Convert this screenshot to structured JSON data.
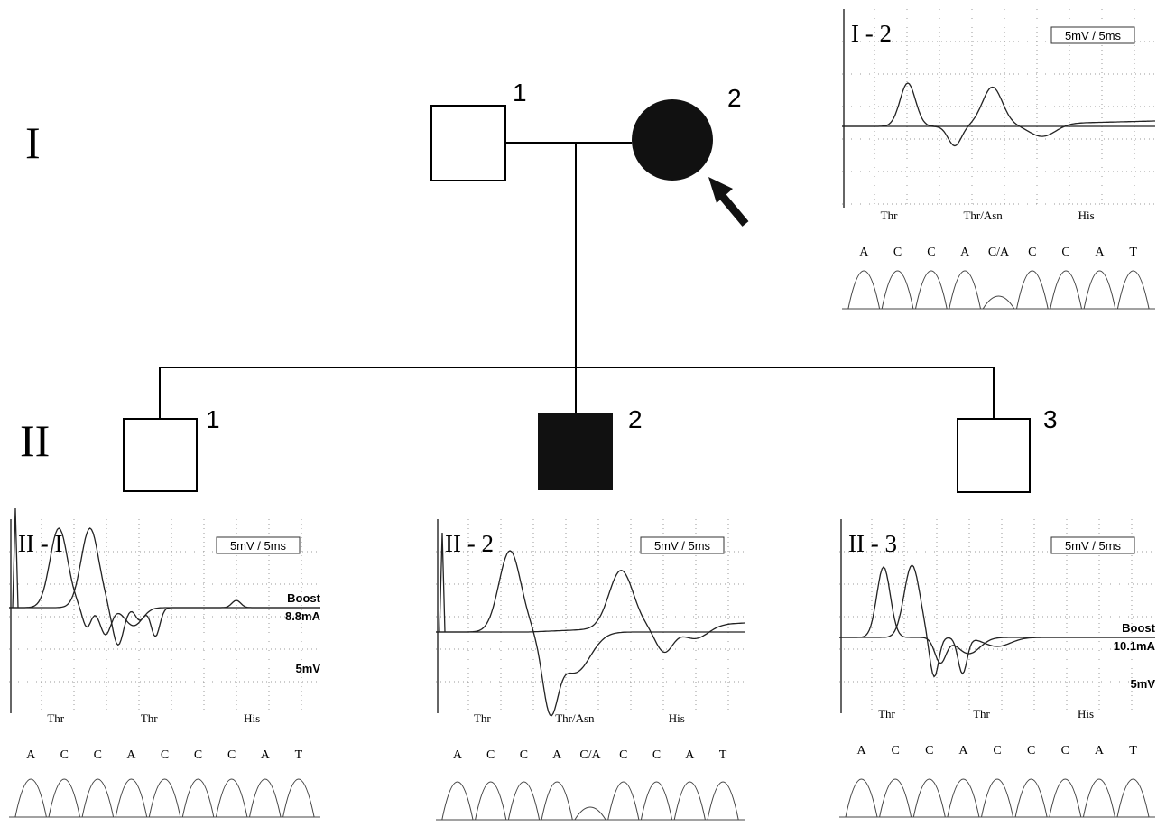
{
  "generations": [
    {
      "label": "I",
      "individuals": [
        {
          "number": "1"
        },
        {
          "number": "2"
        }
      ]
    },
    {
      "label": "II",
      "individuals": [
        {
          "number": "1"
        },
        {
          "number": "2"
        },
        {
          "number": "3"
        }
      ]
    }
  ],
  "panels": [
    {
      "title": "I - 2",
      "scale": "5mV / 5ms",
      "side_labels": [],
      "amino_acids": [
        "Thr",
        "Thr/Asn",
        "His"
      ],
      "bases": [
        "A",
        "C",
        "C",
        "A",
        "C/A",
        "C",
        "C",
        "A",
        "T"
      ]
    },
    {
      "title": "II - I",
      "scale": "5mV / 5ms",
      "side_labels": [
        "Boost",
        "8.8mA",
        "5mV"
      ],
      "amino_acids": [
        "Thr",
        "Thr",
        "His"
      ],
      "bases": [
        "A",
        "C",
        "C",
        "A",
        "C",
        "C",
        "C",
        "A",
        "T"
      ]
    },
    {
      "title": "II - 2",
      "scale": "5mV / 5ms",
      "side_labels": [],
      "amino_acids": [
        "Thr",
        "Thr/Asn",
        "His"
      ],
      "bases": [
        "A",
        "C",
        "C",
        "A",
        "C/A",
        "C",
        "C",
        "A",
        "T"
      ]
    },
    {
      "title": "II - 3",
      "scale": "5mV / 5ms",
      "side_labels": [
        "Boost",
        "10.1mA",
        "5mV"
      ],
      "amino_acids": [
        "Thr",
        "Thr",
        "His"
      ],
      "bases": [
        "A",
        "C",
        "C",
        "A",
        "C",
        "C",
        "C",
        "A",
        "T"
      ]
    }
  ]
}
